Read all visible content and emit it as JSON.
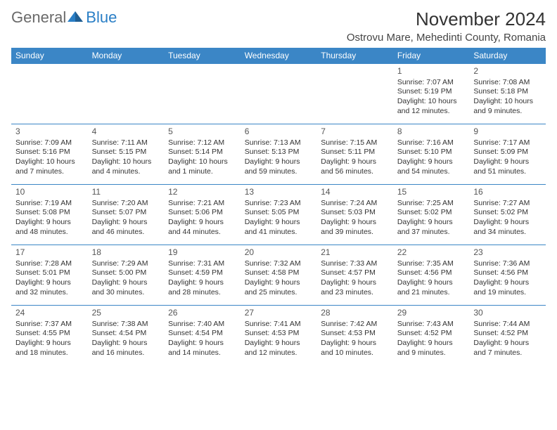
{
  "logo": {
    "text1": "General",
    "text2": "Blue"
  },
  "title": "November 2024",
  "location": "Ostrovu Mare, Mehedinti County, Romania",
  "day_headers": [
    "Sunday",
    "Monday",
    "Tuesday",
    "Wednesday",
    "Thursday",
    "Friday",
    "Saturday"
  ],
  "colors": {
    "header_bg": "#3b86c6",
    "header_fg": "#ffffff",
    "rule": "#3b86c6",
    "logo_gray": "#6a6a6a",
    "logo_blue": "#2a7fc6",
    "text": "#333333"
  },
  "weeks": [
    [
      null,
      null,
      null,
      null,
      null,
      {
        "n": "1",
        "sr": "7:07 AM",
        "ss": "5:19 PM",
        "dl": "10 hours and 12 minutes."
      },
      {
        "n": "2",
        "sr": "7:08 AM",
        "ss": "5:18 PM",
        "dl": "10 hours and 9 minutes."
      }
    ],
    [
      {
        "n": "3",
        "sr": "7:09 AM",
        "ss": "5:16 PM",
        "dl": "10 hours and 7 minutes."
      },
      {
        "n": "4",
        "sr": "7:11 AM",
        "ss": "5:15 PM",
        "dl": "10 hours and 4 minutes."
      },
      {
        "n": "5",
        "sr": "7:12 AM",
        "ss": "5:14 PM",
        "dl": "10 hours and 1 minute."
      },
      {
        "n": "6",
        "sr": "7:13 AM",
        "ss": "5:13 PM",
        "dl": "9 hours and 59 minutes."
      },
      {
        "n": "7",
        "sr": "7:15 AM",
        "ss": "5:11 PM",
        "dl": "9 hours and 56 minutes."
      },
      {
        "n": "8",
        "sr": "7:16 AM",
        "ss": "5:10 PM",
        "dl": "9 hours and 54 minutes."
      },
      {
        "n": "9",
        "sr": "7:17 AM",
        "ss": "5:09 PM",
        "dl": "9 hours and 51 minutes."
      }
    ],
    [
      {
        "n": "10",
        "sr": "7:19 AM",
        "ss": "5:08 PM",
        "dl": "9 hours and 48 minutes."
      },
      {
        "n": "11",
        "sr": "7:20 AM",
        "ss": "5:07 PM",
        "dl": "9 hours and 46 minutes."
      },
      {
        "n": "12",
        "sr": "7:21 AM",
        "ss": "5:06 PM",
        "dl": "9 hours and 44 minutes."
      },
      {
        "n": "13",
        "sr": "7:23 AM",
        "ss": "5:05 PM",
        "dl": "9 hours and 41 minutes."
      },
      {
        "n": "14",
        "sr": "7:24 AM",
        "ss": "5:03 PM",
        "dl": "9 hours and 39 minutes."
      },
      {
        "n": "15",
        "sr": "7:25 AM",
        "ss": "5:02 PM",
        "dl": "9 hours and 37 minutes."
      },
      {
        "n": "16",
        "sr": "7:27 AM",
        "ss": "5:02 PM",
        "dl": "9 hours and 34 minutes."
      }
    ],
    [
      {
        "n": "17",
        "sr": "7:28 AM",
        "ss": "5:01 PM",
        "dl": "9 hours and 32 minutes."
      },
      {
        "n": "18",
        "sr": "7:29 AM",
        "ss": "5:00 PM",
        "dl": "9 hours and 30 minutes."
      },
      {
        "n": "19",
        "sr": "7:31 AM",
        "ss": "4:59 PM",
        "dl": "9 hours and 28 minutes."
      },
      {
        "n": "20",
        "sr": "7:32 AM",
        "ss": "4:58 PM",
        "dl": "9 hours and 25 minutes."
      },
      {
        "n": "21",
        "sr": "7:33 AM",
        "ss": "4:57 PM",
        "dl": "9 hours and 23 minutes."
      },
      {
        "n": "22",
        "sr": "7:35 AM",
        "ss": "4:56 PM",
        "dl": "9 hours and 21 minutes."
      },
      {
        "n": "23",
        "sr": "7:36 AM",
        "ss": "4:56 PM",
        "dl": "9 hours and 19 minutes."
      }
    ],
    [
      {
        "n": "24",
        "sr": "7:37 AM",
        "ss": "4:55 PM",
        "dl": "9 hours and 18 minutes."
      },
      {
        "n": "25",
        "sr": "7:38 AM",
        "ss": "4:54 PM",
        "dl": "9 hours and 16 minutes."
      },
      {
        "n": "26",
        "sr": "7:40 AM",
        "ss": "4:54 PM",
        "dl": "9 hours and 14 minutes."
      },
      {
        "n": "27",
        "sr": "7:41 AM",
        "ss": "4:53 PM",
        "dl": "9 hours and 12 minutes."
      },
      {
        "n": "28",
        "sr": "7:42 AM",
        "ss": "4:53 PM",
        "dl": "9 hours and 10 minutes."
      },
      {
        "n": "29",
        "sr": "7:43 AM",
        "ss": "4:52 PM",
        "dl": "9 hours and 9 minutes."
      },
      {
        "n": "30",
        "sr": "7:44 AM",
        "ss": "4:52 PM",
        "dl": "9 hours and 7 minutes."
      }
    ]
  ],
  "labels": {
    "sunrise": "Sunrise: ",
    "sunset": "Sunset: ",
    "daylight": "Daylight: "
  }
}
